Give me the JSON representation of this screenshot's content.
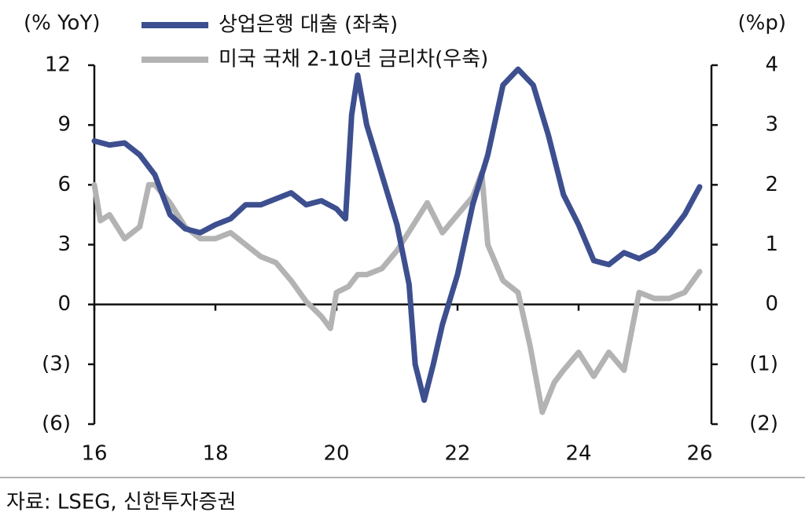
{
  "chart_data": {
    "type": "line",
    "y_label": "(% YoY)",
    "y2_label": "(%p)",
    "source": "자료: LSEG, 신한투자증권",
    "xlim": [
      16,
      26
    ],
    "xticks": [
      16,
      18,
      20,
      22,
      24,
      26
    ],
    "ylim": [
      -6,
      12
    ],
    "yticks": [
      {
        "value": -6,
        "label": "(6)"
      },
      {
        "value": -3,
        "label": "(3)"
      },
      0,
      3,
      6,
      9,
      12
    ],
    "y2lim": [
      -2,
      4
    ],
    "y2ticks": [
      {
        "value": -2,
        "label": "(2)"
      },
      {
        "value": -1,
        "label": "(1)"
      },
      0,
      1,
      2,
      3,
      4
    ],
    "series": [
      {
        "name": "상업은행 대출 (좌축)",
        "color": "#3d4f8f",
        "x": [
          16.0,
          16.25,
          16.5,
          16.75,
          17.0,
          17.25,
          17.5,
          17.75,
          18.0,
          18.25,
          18.5,
          18.75,
          19.0,
          19.25,
          19.5,
          19.75,
          20.0,
          20.15,
          20.25,
          20.35,
          20.5,
          20.75,
          21.0,
          21.2,
          21.3,
          21.45,
          21.6,
          21.75,
          22.0,
          22.25,
          22.5,
          22.75,
          23.0,
          23.25,
          23.5,
          23.75,
          24.0,
          24.25,
          24.5,
          24.75,
          25.0,
          25.25,
          25.5,
          25.75,
          26.0
        ],
        "values": [
          8.2,
          8.0,
          8.1,
          7.5,
          6.5,
          4.5,
          3.8,
          3.6,
          4.0,
          4.3,
          5.0,
          5.0,
          5.3,
          5.6,
          5.0,
          5.2,
          4.8,
          4.3,
          9.5,
          11.5,
          9.0,
          6.5,
          4.0,
          1.0,
          -3.0,
          -4.8,
          -3.0,
          -1.0,
          1.5,
          5.0,
          7.5,
          11.0,
          11.8,
          11.0,
          8.5,
          5.5,
          4.0,
          2.2,
          2.0,
          2.6,
          2.3,
          2.7,
          3.5,
          4.5,
          5.9
        ]
      },
      {
        "name": "미국 국채 2-10년 금리차(우축)",
        "color": "#b3b3b3",
        "axis": "y2",
        "x": [
          16.0,
          16.1,
          16.25,
          16.5,
          16.75,
          16.9,
          17.0,
          17.25,
          17.5,
          17.75,
          18.0,
          18.25,
          18.5,
          18.75,
          19.0,
          19.25,
          19.5,
          19.75,
          19.9,
          20.0,
          20.2,
          20.35,
          20.5,
          20.75,
          21.0,
          21.25,
          21.5,
          21.75,
          22.0,
          22.25,
          22.4,
          22.5,
          22.75,
          23.0,
          23.2,
          23.4,
          23.6,
          23.75,
          24.0,
          24.25,
          24.5,
          24.75,
          25.0,
          25.25,
          25.5,
          25.75,
          26.0
        ],
        "values": [
          2.0,
          1.4,
          1.5,
          1.1,
          1.3,
          2.0,
          2.0,
          1.7,
          1.3,
          1.1,
          1.1,
          1.2,
          1.0,
          0.8,
          0.7,
          0.4,
          0.05,
          -0.2,
          -0.4,
          0.2,
          0.3,
          0.5,
          0.5,
          0.6,
          0.9,
          1.3,
          1.7,
          1.2,
          1.5,
          1.8,
          2.2,
          1.0,
          0.4,
          0.2,
          -0.7,
          -1.8,
          -1.3,
          -1.1,
          -0.8,
          -1.2,
          -0.8,
          -1.1,
          0.2,
          0.1,
          0.1,
          0.2,
          0.55
        ]
      }
    ]
  }
}
